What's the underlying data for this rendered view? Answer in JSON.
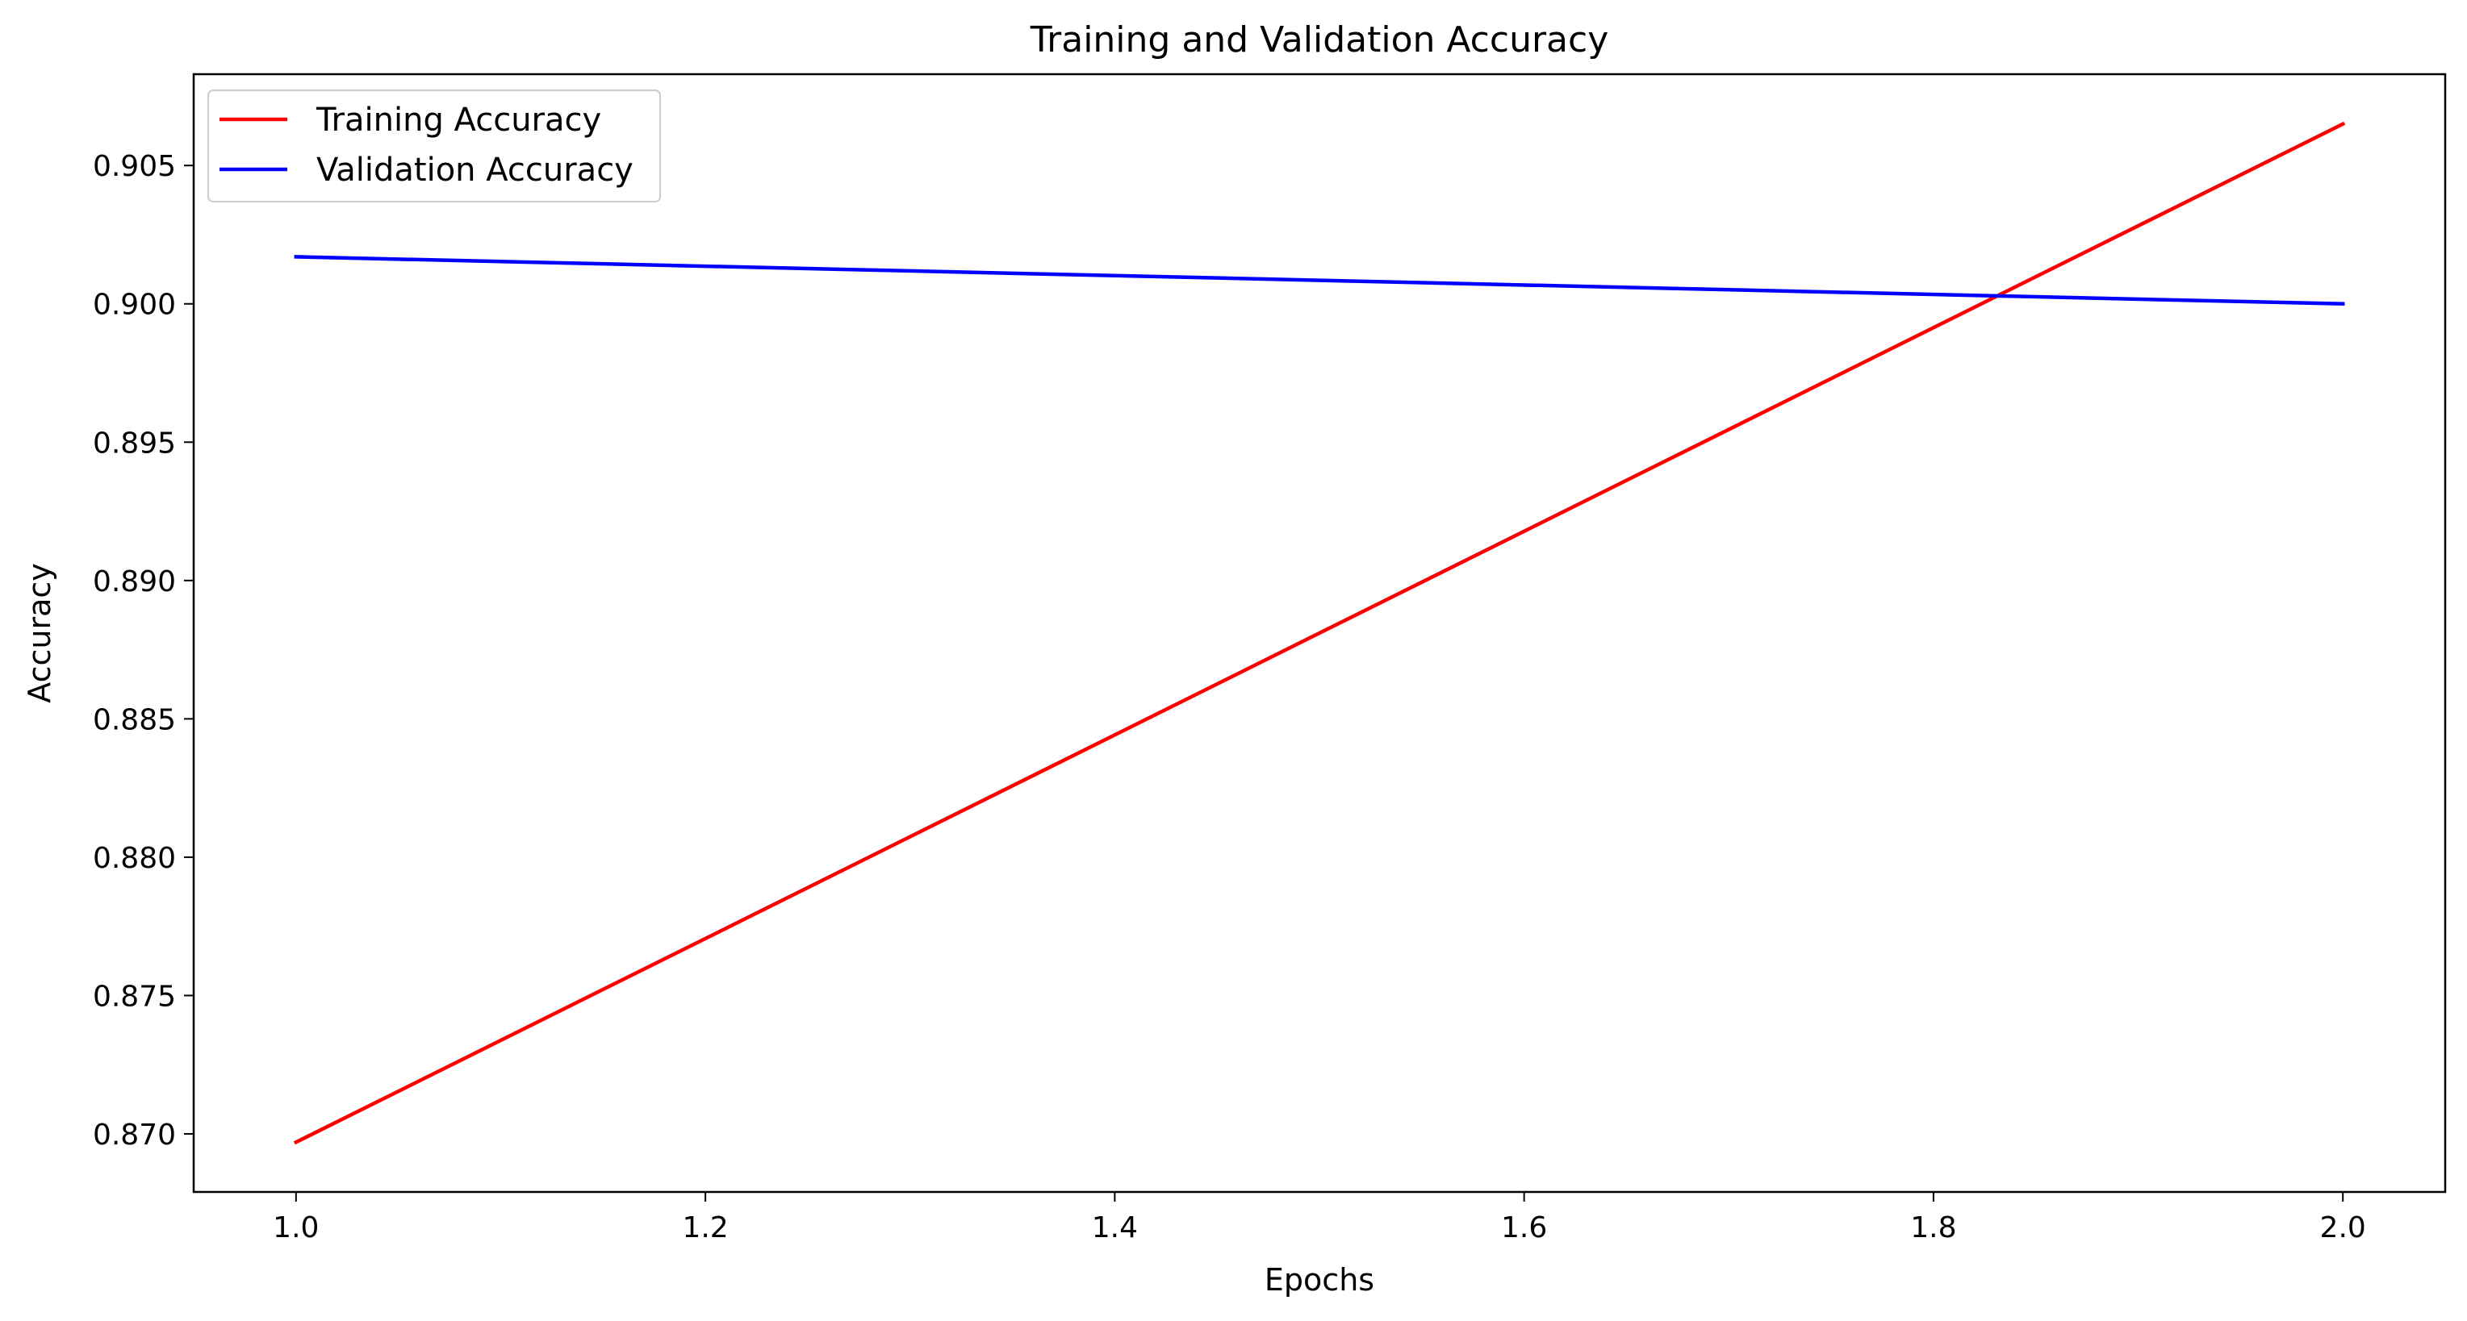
{
  "chart_data": {
    "type": "line",
    "title": "Training and Validation Accuracy",
    "xlabel": "Epochs",
    "ylabel": "Accuracy",
    "x": [
      1.0,
      2.0
    ],
    "series": [
      {
        "name": "Training Accuracy",
        "values": [
          0.8697,
          0.9065
        ],
        "color": "#ff0000"
      },
      {
        "name": "Validation Accuracy",
        "values": [
          0.9017,
          0.9
        ],
        "color": "#0000ff"
      }
    ],
    "xlim": [
      0.95,
      2.05
    ],
    "ylim": [
      0.8679,
      0.9083
    ],
    "xticks": [
      1.0,
      1.2,
      1.4,
      1.6,
      1.8,
      2.0
    ],
    "xtick_labels": [
      "1.0",
      "1.2",
      "1.4",
      "1.6",
      "1.8",
      "2.0"
    ],
    "yticks": [
      0.87,
      0.875,
      0.88,
      0.885,
      0.89,
      0.895,
      0.9,
      0.905
    ],
    "ytick_labels": [
      "0.870",
      "0.875",
      "0.880",
      "0.885",
      "0.890",
      "0.895",
      "0.900",
      "0.905"
    ],
    "grid": false,
    "legend_position": "top-left"
  }
}
